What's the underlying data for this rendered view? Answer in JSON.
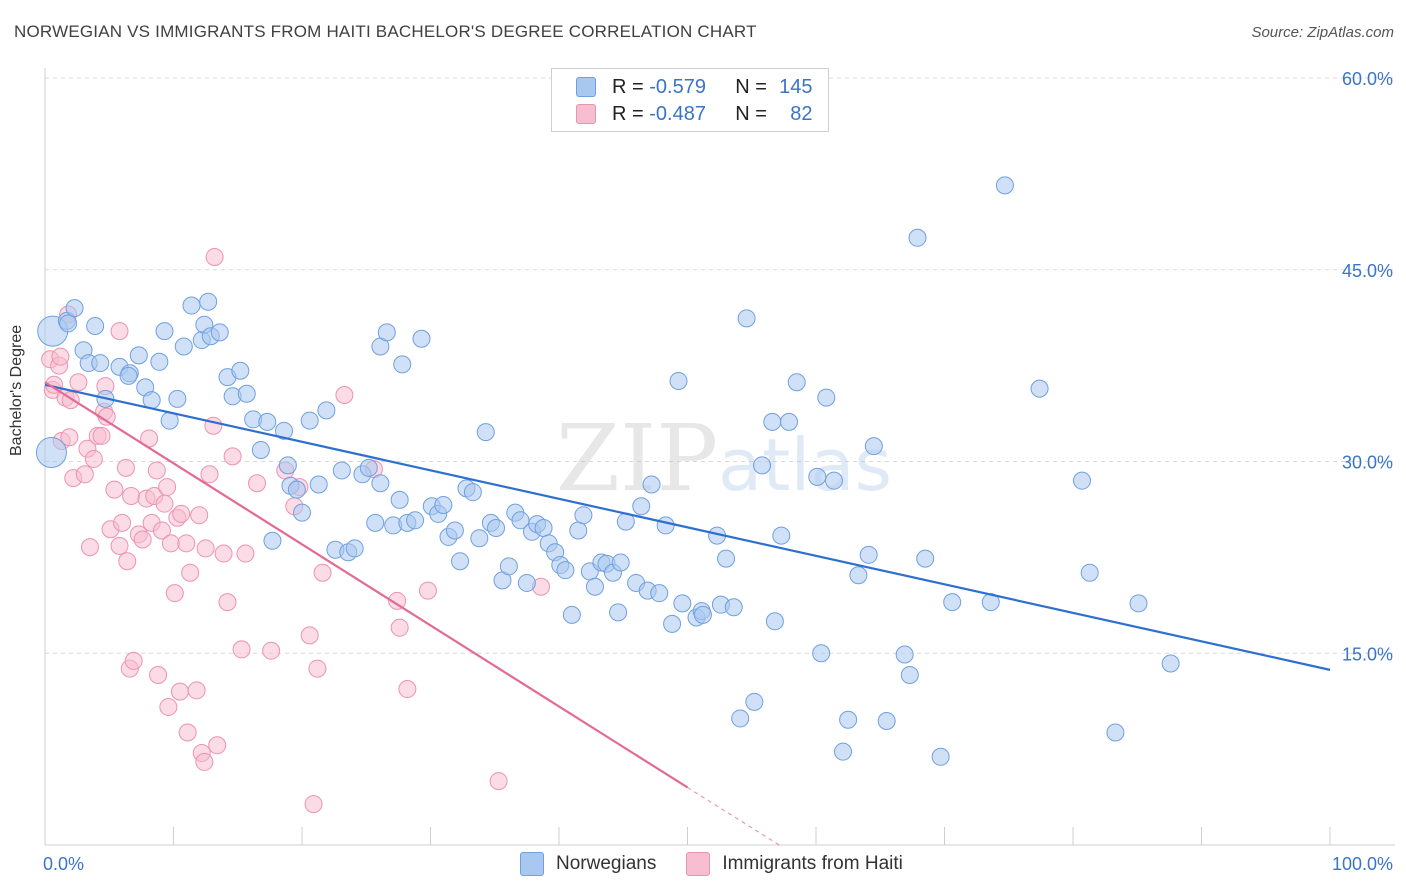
{
  "header": {
    "title": "NORWEGIAN VS IMMIGRANTS FROM HAITI BACHELOR'S DEGREE CORRELATION CHART",
    "source": "Source: ZipAtlas.com"
  },
  "legend": {
    "rows": [
      {
        "r_label": "R = ",
        "r_value": "-0.579",
        "n_label": "N = ",
        "n_value": "145"
      },
      {
        "r_label": "R = ",
        "r_value": "-0.487",
        "n_label": "N = ",
        "n_value": "82"
      }
    ]
  },
  "bottom_legend": {
    "items": [
      {
        "label": "Norwegians"
      },
      {
        "label": "Immigrants from Haiti"
      }
    ]
  },
  "watermark": {
    "zip": "ZIP",
    "atlas": "atlas"
  },
  "colors": {
    "norwegian_fill": "#a9c8f0",
    "norwegian_stroke": "#6fa0e0",
    "norwegian_line": "#2f6fd0",
    "haiti_fill": "#f7bdd0",
    "haiti_stroke": "#ec93b0",
    "haiti_line": "#e26a94",
    "axis_text": "#3a74c8",
    "grid": "#d8d8d8"
  },
  "chart_data": {
    "type": "scatter",
    "title": "NORWEGIAN VS IMMIGRANTS FROM HAITI BACHELOR'S DEGREE CORRELATION CHART",
    "xlabel": "",
    "ylabel": "Bachelor's Degree",
    "xlim": [
      0,
      100
    ],
    "ylim": [
      0,
      60
    ],
    "x_tick_labels": [
      "0.0%",
      "100.0%"
    ],
    "y_ticks": [
      15,
      30,
      45,
      60
    ],
    "y_tick_labels": [
      "15.0%",
      "30.0%",
      "45.0%",
      "60.0%"
    ],
    "grid": true,
    "series": [
      {
        "name": "Norwegians",
        "r": -0.579,
        "n": 145,
        "trend": {
          "x": [
            0,
            100
          ],
          "y": [
            36.0,
            13.7
          ]
        },
        "points": [
          [
            0.6,
            40.2
          ],
          [
            0.5,
            30.7
          ],
          [
            1.7,
            41.0
          ],
          [
            2.3,
            42.0
          ],
          [
            1.8,
            40.8
          ],
          [
            3.0,
            38.7
          ],
          [
            3.9,
            40.6
          ],
          [
            3.4,
            37.7
          ],
          [
            4.3,
            37.7
          ],
          [
            4.7,
            34.9
          ],
          [
            5.8,
            37.4
          ],
          [
            6.6,
            36.9
          ],
          [
            7.3,
            38.3
          ],
          [
            6.5,
            36.7
          ],
          [
            7.8,
            35.8
          ],
          [
            8.3,
            34.8
          ],
          [
            8.9,
            37.8
          ],
          [
            9.3,
            40.2
          ],
          [
            10.3,
            34.9
          ],
          [
            9.7,
            33.2
          ],
          [
            10.8,
            39.0
          ],
          [
            11.4,
            42.2
          ],
          [
            12.2,
            39.5
          ],
          [
            12.4,
            40.7
          ],
          [
            12.7,
            42.5
          ],
          [
            12.9,
            39.8
          ],
          [
            13.6,
            40.1
          ],
          [
            14.2,
            36.6
          ],
          [
            14.6,
            35.1
          ],
          [
            15.2,
            37.1
          ],
          [
            15.7,
            35.3
          ],
          [
            16.2,
            33.3
          ],
          [
            17.3,
            33.1
          ],
          [
            16.8,
            30.9
          ],
          [
            18.6,
            32.4
          ],
          [
            17.7,
            23.8
          ],
          [
            18.9,
            29.7
          ],
          [
            19.1,
            28.1
          ],
          [
            19.6,
            27.8
          ],
          [
            20.0,
            26.0
          ],
          [
            20.6,
            33.2
          ],
          [
            21.3,
            28.2
          ],
          [
            21.9,
            34.0
          ],
          [
            22.6,
            23.1
          ],
          [
            23.1,
            29.3
          ],
          [
            23.6,
            22.9
          ],
          [
            24.1,
            23.2
          ],
          [
            24.7,
            29.0
          ],
          [
            25.2,
            29.5
          ],
          [
            25.7,
            25.2
          ],
          [
            26.1,
            28.3
          ],
          [
            26.1,
            39.0
          ],
          [
            26.6,
            40.1
          ],
          [
            27.1,
            25.0
          ],
          [
            27.6,
            27.0
          ],
          [
            27.8,
            37.6
          ],
          [
            28.2,
            25.2
          ],
          [
            28.8,
            25.4
          ],
          [
            29.3,
            39.6
          ],
          [
            30.1,
            26.5
          ],
          [
            30.6,
            25.9
          ],
          [
            31.0,
            26.6
          ],
          [
            31.4,
            24.1
          ],
          [
            31.9,
            24.6
          ],
          [
            32.3,
            22.2
          ],
          [
            32.8,
            27.9
          ],
          [
            33.3,
            27.6
          ],
          [
            33.8,
            24.0
          ],
          [
            34.3,
            32.3
          ],
          [
            34.7,
            25.2
          ],
          [
            35.1,
            24.8
          ],
          [
            35.6,
            20.7
          ],
          [
            36.1,
            21.8
          ],
          [
            36.6,
            26.0
          ],
          [
            37.0,
            25.4
          ],
          [
            37.5,
            20.5
          ],
          [
            37.9,
            24.5
          ],
          [
            38.3,
            25.1
          ],
          [
            38.8,
            24.8
          ],
          [
            39.2,
            23.6
          ],
          [
            39.7,
            22.9
          ],
          [
            40.1,
            21.9
          ],
          [
            40.5,
            21.5
          ],
          [
            41.0,
            18.0
          ],
          [
            41.5,
            24.6
          ],
          [
            41.9,
            25.8
          ],
          [
            42.4,
            21.4
          ],
          [
            42.8,
            20.2
          ],
          [
            43.3,
            22.1
          ],
          [
            43.7,
            22.0
          ],
          [
            44.2,
            21.3
          ],
          [
            44.6,
            18.2
          ],
          [
            44.8,
            22.1
          ],
          [
            45.2,
            25.3
          ],
          [
            46.0,
            20.5
          ],
          [
            46.4,
            26.5
          ],
          [
            46.9,
            19.9
          ],
          [
            47.2,
            28.2
          ],
          [
            47.8,
            19.7
          ],
          [
            48.3,
            25.0
          ],
          [
            48.8,
            17.3
          ],
          [
            49.3,
            36.3
          ],
          [
            49.6,
            18.9
          ],
          [
            50.7,
            17.8
          ],
          [
            51.1,
            18.3
          ],
          [
            51.2,
            18.0
          ],
          [
            52.3,
            24.2
          ],
          [
            52.6,
            18.8
          ],
          [
            53.0,
            22.4
          ],
          [
            53.6,
            18.6
          ],
          [
            54.1,
            9.9
          ],
          [
            54.6,
            41.2
          ],
          [
            55.2,
            11.2
          ],
          [
            55.8,
            29.7
          ],
          [
            56.6,
            33.1
          ],
          [
            56.8,
            17.5
          ],
          [
            57.3,
            24.2
          ],
          [
            57.9,
            33.1
          ],
          [
            58.5,
            36.2
          ],
          [
            60.1,
            28.8
          ],
          [
            60.4,
            15.0
          ],
          [
            60.8,
            35.0
          ],
          [
            61.4,
            28.5
          ],
          [
            62.1,
            7.3
          ],
          [
            62.5,
            9.8
          ],
          [
            63.3,
            21.1
          ],
          [
            64.1,
            22.7
          ],
          [
            64.5,
            31.2
          ],
          [
            65.5,
            9.7
          ],
          [
            66.9,
            14.9
          ],
          [
            67.3,
            13.3
          ],
          [
            67.9,
            47.5
          ],
          [
            68.5,
            22.4
          ],
          [
            69.7,
            6.9
          ],
          [
            70.6,
            19.0
          ],
          [
            73.6,
            19.0
          ],
          [
            74.7,
            51.6
          ],
          [
            77.4,
            35.7
          ],
          [
            80.7,
            28.5
          ],
          [
            81.3,
            21.3
          ],
          [
            83.3,
            8.8
          ],
          [
            85.1,
            18.9
          ],
          [
            87.6,
            14.2
          ]
        ]
      },
      {
        "name": "Immigrants from Haiti",
        "r": -0.487,
        "n": 82,
        "trend": {
          "x": [
            0,
            50
          ],
          "y": [
            36.2,
            4.5
          ]
        },
        "trend_dashed_extension": {
          "x": [
            50,
            60
          ],
          "y": [
            4.5,
            -1.8
          ]
        },
        "points": [
          [
            0.4,
            38.0
          ],
          [
            0.6,
            35.6
          ],
          [
            0.7,
            36.0
          ],
          [
            1.1,
            37.5
          ],
          [
            1.2,
            38.2
          ],
          [
            1.6,
            35.0
          ],
          [
            1.3,
            31.6
          ],
          [
            2.0,
            34.8
          ],
          [
            1.9,
            31.9
          ],
          [
            2.2,
            28.7
          ],
          [
            2.6,
            36.2
          ],
          [
            3.1,
            29.0
          ],
          [
            3.3,
            31.0
          ],
          [
            3.5,
            23.3
          ],
          [
            3.8,
            30.2
          ],
          [
            4.1,
            32.0
          ],
          [
            4.4,
            32.0
          ],
          [
            4.7,
            35.9
          ],
          [
            4.6,
            33.9
          ],
          [
            4.8,
            33.5
          ],
          [
            5.1,
            24.7
          ],
          [
            5.4,
            27.8
          ],
          [
            5.8,
            23.4
          ],
          [
            5.8,
            40.2
          ],
          [
            6.0,
            25.2
          ],
          [
            6.3,
            29.5
          ],
          [
            6.4,
            22.2
          ],
          [
            6.6,
            13.8
          ],
          [
            6.7,
            27.3
          ],
          [
            6.9,
            14.4
          ],
          [
            7.3,
            24.3
          ],
          [
            7.6,
            23.9
          ],
          [
            7.9,
            27.1
          ],
          [
            8.1,
            31.8
          ],
          [
            8.3,
            25.2
          ],
          [
            8.5,
            27.3
          ],
          [
            8.7,
            29.3
          ],
          [
            8.8,
            13.3
          ],
          [
            9.1,
            24.6
          ],
          [
            9.3,
            26.7
          ],
          [
            9.5,
            28.0
          ],
          [
            9.6,
            10.8
          ],
          [
            9.8,
            23.6
          ],
          [
            10.1,
            19.7
          ],
          [
            10.3,
            25.6
          ],
          [
            10.5,
            12.0
          ],
          [
            10.6,
            25.9
          ],
          [
            11.0,
            23.6
          ],
          [
            11.1,
            8.8
          ],
          [
            11.3,
            21.3
          ],
          [
            11.8,
            12.1
          ],
          [
            12.0,
            25.8
          ],
          [
            12.2,
            7.2
          ],
          [
            12.4,
            6.5
          ],
          [
            12.5,
            23.2
          ],
          [
            12.8,
            29.0
          ],
          [
            13.1,
            32.8
          ],
          [
            13.2,
            46.0
          ],
          [
            13.4,
            7.8
          ],
          [
            13.9,
            22.8
          ],
          [
            14.2,
            19.0
          ],
          [
            14.6,
            30.4
          ],
          [
            15.3,
            15.3
          ],
          [
            15.6,
            22.8
          ],
          [
            16.5,
            28.3
          ],
          [
            17.6,
            15.2
          ],
          [
            18.7,
            29.3
          ],
          [
            19.4,
            26.5
          ],
          [
            19.8,
            28.0
          ],
          [
            20.6,
            16.4
          ],
          [
            20.9,
            3.2
          ],
          [
            21.2,
            13.8
          ],
          [
            21.6,
            21.3
          ],
          [
            23.3,
            35.2
          ],
          [
            25.6,
            29.4
          ],
          [
            27.4,
            19.1
          ],
          [
            27.6,
            17.0
          ],
          [
            28.2,
            12.2
          ],
          [
            29.8,
            19.9
          ],
          [
            38.6,
            20.2
          ],
          [
            35.3,
            5.0
          ],
          [
            1.8,
            41.5
          ]
        ]
      }
    ]
  }
}
